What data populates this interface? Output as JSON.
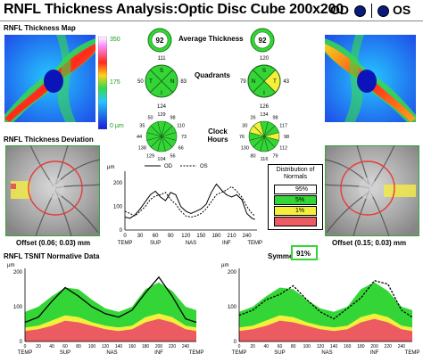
{
  "header": {
    "title": "RNFL Thickness Analysis:Optic Disc Cube 200x200",
    "od_label": "OD",
    "os_label": "OS"
  },
  "map_section": {
    "title": "RNFL Thickness Map",
    "scale_max": "350",
    "scale_mid": "175",
    "scale_min": "0 µm"
  },
  "deviation_section": {
    "title": "RNFL Thickness Deviation",
    "offset_od": "Offset (0.06; 0.03) mm",
    "offset_os": "Offset (0.15; 0.03) mm"
  },
  "average_thickness": {
    "label": "Average Thickness",
    "od": "92",
    "os": "92"
  },
  "quadrants": {
    "label": "Quadrants",
    "od": {
      "S": "111",
      "T": "50",
      "N": "83",
      "I": "124"
    },
    "os": {
      "S": "120",
      "T": "79",
      "N": "43",
      "I": "126"
    },
    "letters": {
      "S": "S",
      "T": "T",
      "N": "N",
      "I": "I"
    }
  },
  "clock_hours": {
    "label": "Clock Hours",
    "od": [
      "129",
      "98",
      "110",
      "73",
      "66",
      "56",
      "104",
      "129",
      "138",
      "44",
      "35",
      "50"
    ],
    "os": [
      "134",
      "98",
      "117",
      "98",
      "112",
      "79",
      "116",
      "80",
      "130",
      "76",
      "30",
      "26"
    ]
  },
  "legend": {
    "title": "Distribution of Normals",
    "items": [
      "95%",
      "5%",
      "1%"
    ],
    "colors": {
      "white": "#ffffff",
      "green": "#34d637",
      "yellow": "#f5ef3a",
      "red": "#ec5a62"
    }
  },
  "symmetry": {
    "label": "Symmetry",
    "value": "91%"
  },
  "tsnit_section": {
    "title": "RNFL TSNIT Normative Data"
  },
  "chart_data": [
    {
      "type": "line",
      "ylabel": "µm",
      "ylim": [
        0,
        250
      ],
      "yticks": [
        0,
        100,
        200
      ],
      "xlim": [
        0,
        260
      ],
      "xticks": [
        "0",
        "30",
        "60",
        "90",
        "120",
        "150",
        "180",
        "210",
        "240"
      ],
      "region_labels": [
        "TEMP",
        "SUP",
        "NAS",
        "INF",
        "TEMP"
      ],
      "series": [
        {
          "name": "OD",
          "style": "solid",
          "x": [
            0,
            10,
            20,
            30,
            40,
            50,
            60,
            70,
            80,
            90,
            100,
            110,
            120,
            130,
            140,
            150,
            160,
            170,
            180,
            190,
            200,
            210,
            220,
            230,
            240,
            250,
            256
          ],
          "y": [
            55,
            50,
            65,
            90,
            120,
            150,
            165,
            140,
            125,
            160,
            150,
            100,
            80,
            70,
            80,
            90,
            110,
            160,
            195,
            170,
            150,
            140,
            150,
            130,
            70,
            50,
            45
          ]
        },
        {
          "name": "OS",
          "style": "dashed",
          "x": [
            0,
            10,
            20,
            30,
            40,
            50,
            60,
            70,
            80,
            90,
            100,
            110,
            120,
            130,
            140,
            150,
            160,
            170,
            180,
            190,
            200,
            210,
            220,
            230,
            240,
            250,
            256
          ],
          "y": [
            80,
            70,
            60,
            80,
            100,
            130,
            145,
            150,
            160,
            130,
            110,
            80,
            60,
            55,
            60,
            70,
            90,
            120,
            150,
            160,
            170,
            185,
            165,
            140,
            100,
            70,
            60
          ]
        }
      ]
    },
    {
      "type": "area",
      "ylabel": "µm",
      "ylim": [
        0,
        210
      ],
      "yticks": [
        0,
        100,
        200
      ],
      "xticks": [
        "0",
        "20",
        "40",
        "60",
        "80",
        "100",
        "120",
        "140",
        "160",
        "180",
        "200",
        "220",
        "240"
      ],
      "region_labels": [
        "TEMP",
        "SUP",
        "NAS",
        "INF",
        "TEMP"
      ],
      "x": [
        0,
        20,
        40,
        60,
        80,
        100,
        120,
        140,
        160,
        180,
        200,
        220,
        240,
        256
      ],
      "bands": {
        "red_top": [
          30,
          35,
          45,
          60,
          55,
          45,
          35,
          30,
          35,
          55,
          65,
          55,
          35,
          30
        ],
        "yellow_top": [
          40,
          45,
          60,
          75,
          70,
          55,
          45,
          40,
          45,
          70,
          80,
          70,
          45,
          40
        ],
        "green_top": [
          85,
          100,
          130,
          155,
          150,
          120,
          95,
          85,
          100,
          150,
          170,
          145,
          100,
          90
        ],
        "white_top": [
          110,
          125,
          160,
          185,
          180,
          150,
          120,
          105,
          125,
          185,
          200,
          180,
          130,
          115
        ]
      },
      "series": [
        {
          "name": "OD",
          "style": "solid",
          "x": [
            0,
            20,
            40,
            60,
            80,
            100,
            120,
            140,
            160,
            180,
            200,
            220,
            240,
            256
          ],
          "y": [
            55,
            70,
            115,
            155,
            130,
            100,
            80,
            70,
            90,
            140,
            185,
            130,
            65,
            55
          ]
        }
      ]
    },
    {
      "type": "area",
      "ylabel": "µm",
      "ylim": [
        0,
        210
      ],
      "yticks": [
        0,
        100,
        200
      ],
      "xticks": [
        "0",
        "20",
        "40",
        "60",
        "80",
        "100",
        "120",
        "140",
        "160",
        "180",
        "200",
        "220",
        "240"
      ],
      "region_labels": [
        "TEMP",
        "SUP",
        "NAS",
        "INF",
        "TEMP"
      ],
      "x": [
        0,
        20,
        40,
        60,
        80,
        100,
        120,
        140,
        160,
        180,
        200,
        220,
        240,
        256
      ],
      "bands": {
        "red_top": [
          30,
          35,
          45,
          60,
          55,
          45,
          35,
          30,
          35,
          55,
          65,
          55,
          35,
          30
        ],
        "yellow_top": [
          40,
          45,
          60,
          75,
          70,
          55,
          45,
          40,
          45,
          70,
          80,
          70,
          45,
          40
        ],
        "green_top": [
          85,
          100,
          130,
          155,
          150,
          120,
          95,
          85,
          100,
          150,
          170,
          145,
          100,
          90
        ],
        "white_top": [
          110,
          125,
          160,
          185,
          180,
          150,
          120,
          105,
          125,
          185,
          200,
          180,
          130,
          115
        ]
      },
      "series": [
        {
          "name": "OS",
          "style": "dashed",
          "x": [
            0,
            20,
            40,
            60,
            80,
            100,
            120,
            140,
            160,
            180,
            200,
            220,
            240,
            256
          ],
          "y": [
            75,
            90,
            120,
            135,
            160,
            120,
            85,
            65,
            95,
            125,
            175,
            165,
            90,
            70
          ]
        }
      ]
    }
  ]
}
